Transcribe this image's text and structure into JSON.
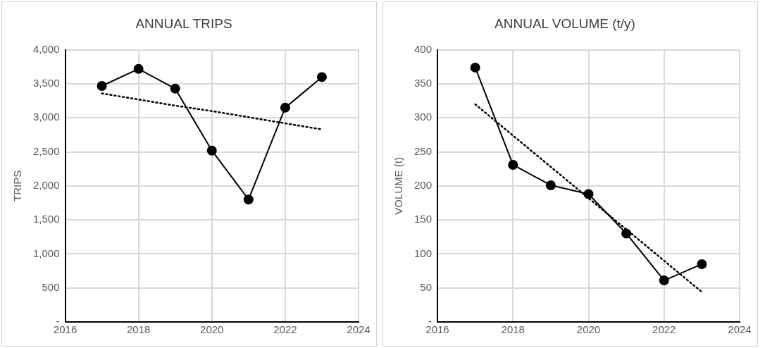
{
  "chart_data": [
    {
      "type": "line",
      "title": "ANNUAL TRIPS",
      "ylabel": "TRIPS",
      "x": [
        2017,
        2018,
        2019,
        2020,
        2021,
        2022,
        2023
      ],
      "xlim": [
        2016,
        2024
      ],
      "xticks": [
        2016,
        2018,
        2020,
        2022,
        2024
      ],
      "ylim": [
        0,
        4000
      ],
      "yticks": [
        {
          "value": 0,
          "label": "-"
        },
        500,
        {
          "value": 1000,
          "label": "1,000"
        },
        {
          "value": 1500,
          "label": "1,500"
        },
        {
          "value": 2000,
          "label": "2,000"
        },
        {
          "value": 2500,
          "label": "2,500"
        },
        {
          "value": 3000,
          "label": "3,000"
        },
        {
          "value": 3500,
          "label": "3,500"
        },
        {
          "value": 4000,
          "label": "4,000"
        }
      ],
      "grid": true,
      "legend": false,
      "marker": "circle",
      "line_style": "solid",
      "series": [
        {
          "color": "#000000",
          "values": [
            3470,
            3720,
            3430,
            2520,
            1800,
            3150,
            3600
          ]
        },
        {
          "type": "line",
          "color": "#000000",
          "values": [
            3360,
            3270,
            3180,
            3100,
            3010,
            2920,
            2830
          ],
          "line_style": "dotted",
          "marker": "none"
        }
      ]
    },
    {
      "type": "line",
      "title": "ANNUAL VOLUME (t/y)",
      "ylabel": "VOLUME (t)",
      "x": [
        2017,
        2018,
        2019,
        2020,
        2021,
        2022,
        2023
      ],
      "xlim": [
        2016,
        2024
      ],
      "xticks": [
        2016,
        2018,
        2020,
        2022,
        2024
      ],
      "ylim": [
        0,
        400
      ],
      "yticks": [
        {
          "value": 0,
          "label": "-"
        },
        50,
        100,
        150,
        200,
        250,
        300,
        350,
        400
      ],
      "grid": true,
      "legend": false,
      "marker": "circle",
      "line_style": "solid",
      "series": [
        {
          "color": "#000000",
          "values": [
            374,
            231,
            201,
            188,
            130,
            61,
            85
          ]
        },
        {
          "type": "line",
          "color": "#000000",
          "values": [
            320,
            274,
            228,
            182,
            136,
            90,
            44
          ],
          "line_style": "dotted",
          "marker": "none"
        }
      ]
    }
  ]
}
